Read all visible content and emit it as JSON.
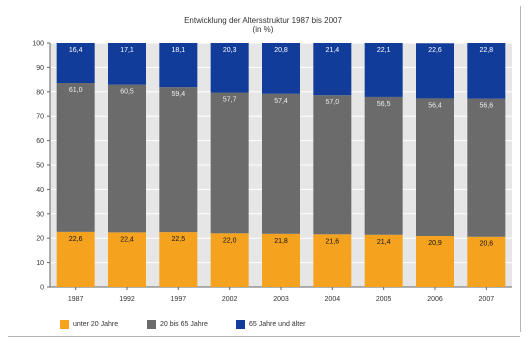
{
  "chart_data": {
    "type": "bar",
    "stacked": true,
    "title": "Entwicklung der Altersstruktur 1987 bis 2007",
    "subtitle": "(in %)",
    "categories": [
      "1987",
      "1992",
      "1997",
      "2002",
      "2003",
      "2004",
      "2005",
      "2006",
      "2007"
    ],
    "series": [
      {
        "name": "unter 20 Jahre",
        "color": "#f5a31f",
        "values": [
          22.6,
          22.4,
          22.5,
          22.0,
          21.8,
          21.6,
          21.4,
          20.9,
          20.6
        ],
        "labels": [
          "22,6",
          "22,4",
          "22,5",
          "22,0",
          "21,8",
          "21,6",
          "21,4",
          "20,9",
          "20,6"
        ]
      },
      {
        "name": "20 bis 65 Jahre",
        "color": "#6b6b6b",
        "values": [
          61.0,
          60.5,
          59.4,
          57.7,
          57.4,
          57.0,
          56.5,
          56.4,
          56.6
        ],
        "labels": [
          "61,0",
          "60,5",
          "59,4",
          "57,7",
          "57,4",
          "57,0",
          "56,5",
          "56,4",
          "56,6"
        ]
      },
      {
        "name": "65 Jahre und älter",
        "color": "#123c99",
        "values": [
          16.4,
          17.1,
          18.1,
          20.3,
          20.8,
          21.4,
          22.1,
          22.6,
          22.8
        ],
        "labels": [
          "16,4",
          "17,1",
          "18,1",
          "20,3",
          "20,8",
          "21,4",
          "22,1",
          "22,6",
          "22,8"
        ]
      }
    ],
    "ylim": [
      0,
      100
    ],
    "yticks": [
      "0",
      "10",
      "20",
      "30",
      "40",
      "50",
      "60",
      "70",
      "80",
      "90",
      "100"
    ],
    "plot_background": "#e6e6e6",
    "grid": true,
    "legend_position": "bottom"
  }
}
